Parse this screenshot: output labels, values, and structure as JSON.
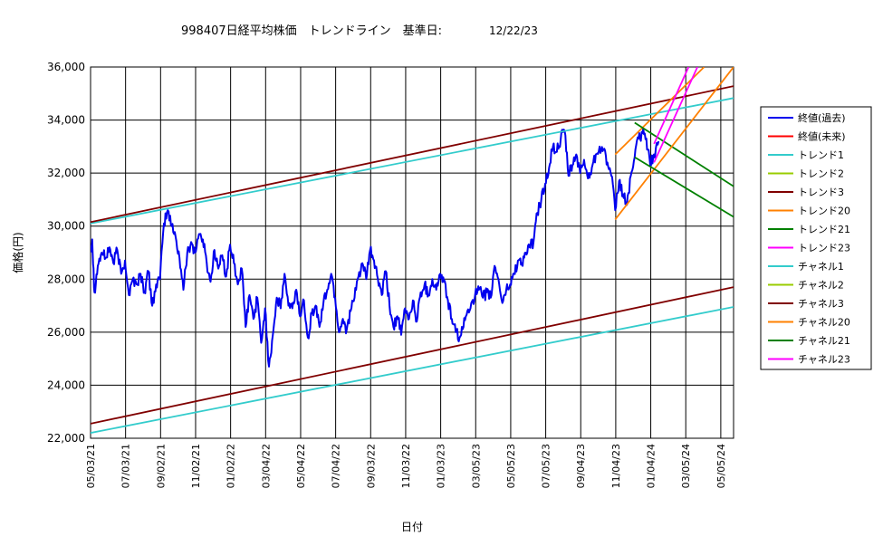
{
  "chart_data": {
    "type": "line",
    "title": {
      "main": "998407日経平均株価　トレンドライン　基準日:",
      "ref_date": "12/22/23"
    },
    "xlabel": "日付",
    "ylabel": "価格(円)",
    "x_range": [
      "2021-03-05",
      "2024-05-05"
    ],
    "ylim": [
      22000,
      36000
    ],
    "grid": true,
    "legend_position": "right",
    "y_ticks": [
      {
        "value": 36000,
        "label": "36,000"
      },
      {
        "value": 34000,
        "label": "34,000"
      },
      {
        "value": 32000,
        "label": "32,000"
      },
      {
        "value": 30000,
        "label": "30,000"
      },
      {
        "value": 28000,
        "label": "28,000"
      },
      {
        "value": 26000,
        "label": "26,000"
      },
      {
        "value": 24000,
        "label": "24,000"
      },
      {
        "value": 22000,
        "label": "22,000"
      }
    ],
    "x_ticks": [
      {
        "date": "2021-03-05",
        "label": "05/03/21"
      },
      {
        "date": "2021-05-07",
        "label": "07/03/21"
      },
      {
        "date": "2021-07-09",
        "label": "09/02/21"
      },
      {
        "date": "2021-09-10",
        "label": "11/02/21"
      },
      {
        "date": "2021-11-12",
        "label": "01/02/22"
      },
      {
        "date": "2022-01-14",
        "label": "03/04/22"
      },
      {
        "date": "2022-03-18",
        "label": "05/04/22"
      },
      {
        "date": "2022-05-20",
        "label": "07/04/22"
      },
      {
        "date": "2022-07-22",
        "label": "09/03/22"
      },
      {
        "date": "2022-09-23",
        "label": "11/03/22"
      },
      {
        "date": "2022-11-25",
        "label": "01/03/23"
      },
      {
        "date": "2023-01-27",
        "label": "03/05/23"
      },
      {
        "date": "2023-03-31",
        "label": "05/05/23"
      },
      {
        "date": "2023-06-02",
        "label": "07/05/23"
      },
      {
        "date": "2023-08-04",
        "label": "09/04/23"
      },
      {
        "date": "2023-10-06",
        "label": "11/04/23"
      },
      {
        "date": "2023-12-08",
        "label": "01/04/24"
      },
      {
        "date": "2024-02-09",
        "label": "03/05/24"
      },
      {
        "date": "2024-04-12",
        "label": "05/05/24"
      }
    ],
    "series": [
      {
        "name": "終値(過去)",
        "color": "#0000ee",
        "kind": "price",
        "points": [
          [
            "2021-03-05",
            29100
          ],
          [
            "2021-03-08",
            29500
          ],
          [
            "2021-03-12",
            27500
          ],
          [
            "2021-03-18",
            28500
          ],
          [
            "2021-03-25",
            29000
          ],
          [
            "2021-04-01",
            28800
          ],
          [
            "2021-04-08",
            29200
          ],
          [
            "2021-04-15",
            28600
          ],
          [
            "2021-04-22",
            29100
          ],
          [
            "2021-04-29",
            28200
          ],
          [
            "2021-05-06",
            28700
          ],
          [
            "2021-05-13",
            27400
          ],
          [
            "2021-05-20",
            28000
          ],
          [
            "2021-05-27",
            27800
          ],
          [
            "2021-06-03",
            28200
          ],
          [
            "2021-06-10",
            27500
          ],
          [
            "2021-06-17",
            28300
          ],
          [
            "2021-06-24",
            27000
          ],
          [
            "2021-07-01",
            27800
          ],
          [
            "2021-07-08",
            28000
          ],
          [
            "2021-07-15",
            30100
          ],
          [
            "2021-07-22",
            30600
          ],
          [
            "2021-07-29",
            30000
          ],
          [
            "2021-08-05",
            29600
          ],
          [
            "2021-08-12",
            28800
          ],
          [
            "2021-08-19",
            27600
          ],
          [
            "2021-08-26",
            29000
          ],
          [
            "2021-09-02",
            29400
          ],
          [
            "2021-09-09",
            29000
          ],
          [
            "2021-09-16",
            29700
          ],
          [
            "2021-09-23",
            29500
          ],
          [
            "2021-09-30",
            28600
          ],
          [
            "2021-10-07",
            27900
          ],
          [
            "2021-10-14",
            29100
          ],
          [
            "2021-10-21",
            28400
          ],
          [
            "2021-10-28",
            28900
          ],
          [
            "2021-11-04",
            28100
          ],
          [
            "2021-11-11",
            29300
          ],
          [
            "2021-11-18",
            28600
          ],
          [
            "2021-11-25",
            27800
          ],
          [
            "2021-12-02",
            28400
          ],
          [
            "2021-12-09",
            26200
          ],
          [
            "2021-12-16",
            27400
          ],
          [
            "2021-12-23",
            26500
          ],
          [
            "2021-12-30",
            27300
          ],
          [
            "2022-01-06",
            25600
          ],
          [
            "2022-01-13",
            26900
          ],
          [
            "2022-01-20",
            24700
          ],
          [
            "2022-01-27",
            25900
          ],
          [
            "2022-02-03",
            27300
          ],
          [
            "2022-02-10",
            26900
          ],
          [
            "2022-02-17",
            28200
          ],
          [
            "2022-02-24",
            27000
          ],
          [
            "2022-03-03",
            26900
          ],
          [
            "2022-03-10",
            27600
          ],
          [
            "2022-03-17",
            26600
          ],
          [
            "2022-03-24",
            27200
          ],
          [
            "2022-03-31",
            25800
          ],
          [
            "2022-04-07",
            26700
          ],
          [
            "2022-04-14",
            27000
          ],
          [
            "2022-04-21",
            26200
          ],
          [
            "2022-04-28",
            27100
          ],
          [
            "2022-05-05",
            27600
          ],
          [
            "2022-05-12",
            28200
          ],
          [
            "2022-05-19",
            27300
          ],
          [
            "2022-05-26",
            26000
          ],
          [
            "2022-06-02",
            26500
          ],
          [
            "2022-06-09",
            26100
          ],
          [
            "2022-06-16",
            26800
          ],
          [
            "2022-06-23",
            27300
          ],
          [
            "2022-06-30",
            28100
          ],
          [
            "2022-07-07",
            28600
          ],
          [
            "2022-07-14",
            28000
          ],
          [
            "2022-07-21",
            29100
          ],
          [
            "2022-07-28",
            28700
          ],
          [
            "2022-08-04",
            28000
          ],
          [
            "2022-08-11",
            27400
          ],
          [
            "2022-08-18",
            28300
          ],
          [
            "2022-08-25",
            27000
          ],
          [
            "2022-09-01",
            26200
          ],
          [
            "2022-09-08",
            26600
          ],
          [
            "2022-09-15",
            25900
          ],
          [
            "2022-09-22",
            26900
          ],
          [
            "2022-09-29",
            26500
          ],
          [
            "2022-10-06",
            27200
          ],
          [
            "2022-10-13",
            26400
          ],
          [
            "2022-10-20",
            27500
          ],
          [
            "2022-10-27",
            27800
          ],
          [
            "2022-11-03",
            27400
          ],
          [
            "2022-11-10",
            28000
          ],
          [
            "2022-11-17",
            27600
          ],
          [
            "2022-11-24",
            28200
          ],
          [
            "2022-12-01",
            27900
          ],
          [
            "2022-12-08",
            27200
          ],
          [
            "2022-12-15",
            26500
          ],
          [
            "2022-12-22",
            26000
          ],
          [
            "2022-12-29",
            25800
          ],
          [
            "2023-01-05",
            26200
          ],
          [
            "2023-01-12",
            26800
          ],
          [
            "2023-01-19",
            27100
          ],
          [
            "2023-01-26",
            27400
          ],
          [
            "2023-02-02",
            27600
          ],
          [
            "2023-02-09",
            27300
          ],
          [
            "2023-02-16",
            27500
          ],
          [
            "2023-02-23",
            27300
          ],
          [
            "2023-03-02",
            28500
          ],
          [
            "2023-03-09",
            28000
          ],
          [
            "2023-03-16",
            27100
          ],
          [
            "2023-03-23",
            27600
          ],
          [
            "2023-03-30",
            27800
          ],
          [
            "2023-04-06",
            28200
          ],
          [
            "2023-04-13",
            28700
          ],
          [
            "2023-04-20",
            28600
          ],
          [
            "2023-04-27",
            29000
          ],
          [
            "2023-05-04",
            29200
          ],
          [
            "2023-05-11",
            29400
          ],
          [
            "2023-05-18",
            30500
          ],
          [
            "2023-05-25",
            31000
          ],
          [
            "2023-06-01",
            31600
          ],
          [
            "2023-06-08",
            32200
          ],
          [
            "2023-06-15",
            33000
          ],
          [
            "2023-06-22",
            32800
          ],
          [
            "2023-06-29",
            33300
          ],
          [
            "2023-07-06",
            33600
          ],
          [
            "2023-07-13",
            31900
          ],
          [
            "2023-07-20",
            32300
          ],
          [
            "2023-07-27",
            32700
          ],
          [
            "2023-08-03",
            32000
          ],
          [
            "2023-08-10",
            32500
          ],
          [
            "2023-08-17",
            31800
          ],
          [
            "2023-08-24",
            32200
          ],
          [
            "2023-08-31",
            32700
          ],
          [
            "2023-09-07",
            33000
          ],
          [
            "2023-09-14",
            32900
          ],
          [
            "2023-09-21",
            32400
          ],
          [
            "2023-09-28",
            31900
          ],
          [
            "2023-10-05",
            30600
          ],
          [
            "2023-10-12",
            31700
          ],
          [
            "2023-10-19",
            31200
          ],
          [
            "2023-10-26",
            30800
          ],
          [
            "2023-11-02",
            31900
          ],
          [
            "2023-11-09",
            32600
          ],
          [
            "2023-11-16",
            33300
          ],
          [
            "2023-11-23",
            33500
          ],
          [
            "2023-11-30",
            33300
          ],
          [
            "2023-12-07",
            32300
          ],
          [
            "2023-12-14",
            32700
          ],
          [
            "2023-12-22",
            33200
          ]
        ]
      },
      {
        "name": "終値(未来)",
        "color": "#ff0000",
        "kind": "line",
        "points": []
      },
      {
        "name": "トレンド1",
        "color": "#33cccc",
        "kind": "line",
        "points": [
          [
            "2021-03-05",
            30100
          ],
          [
            "2024-05-05",
            34830
          ]
        ]
      },
      {
        "name": "トレンド2",
        "color": "#99cc00",
        "kind": "line",
        "points": []
      },
      {
        "name": "トレンド3",
        "color": "#800000",
        "kind": "line",
        "points": [
          [
            "2021-03-05",
            30150
          ],
          [
            "2024-05-05",
            35280
          ]
        ]
      },
      {
        "name": "トレンド20",
        "color": "#ff8000",
        "kind": "line",
        "points": [
          [
            "2023-10-05",
            32700
          ],
          [
            "2024-03-13",
            36000
          ]
        ]
      },
      {
        "name": "トレンド21",
        "color": "#008000",
        "kind": "line",
        "points": [
          [
            "2023-11-09",
            33900
          ],
          [
            "2024-05-05",
            31500
          ]
        ]
      },
      {
        "name": "トレンド23",
        "color": "#ff00ff",
        "kind": "line",
        "points": [
          [
            "2023-12-14",
            33100
          ],
          [
            "2024-02-14",
            36000
          ]
        ]
      },
      {
        "name": "チャネル1",
        "color": "#33cccc",
        "kind": "line",
        "points": [
          [
            "2021-03-05",
            22200
          ],
          [
            "2024-05-05",
            26950
          ]
        ]
      },
      {
        "name": "チャネル2",
        "color": "#99cc00",
        "kind": "line",
        "points": []
      },
      {
        "name": "チャネル3",
        "color": "#800000",
        "kind": "line",
        "points": [
          [
            "2021-03-05",
            22550
          ],
          [
            "2024-05-05",
            27700
          ]
        ]
      },
      {
        "name": "チャネル20",
        "color": "#ff8000",
        "kind": "line",
        "points": [
          [
            "2023-10-05",
            30250
          ],
          [
            "2024-05-05",
            36000
          ]
        ]
      },
      {
        "name": "チャネル21",
        "color": "#008000",
        "kind": "line",
        "points": [
          [
            "2023-11-09",
            32600
          ],
          [
            "2024-05-05",
            30350
          ]
        ]
      },
      {
        "name": "チャネル23",
        "color": "#ff00ff",
        "kind": "line",
        "points": [
          [
            "2023-12-14",
            32400
          ],
          [
            "2024-03-01",
            36000
          ]
        ]
      }
    ]
  }
}
